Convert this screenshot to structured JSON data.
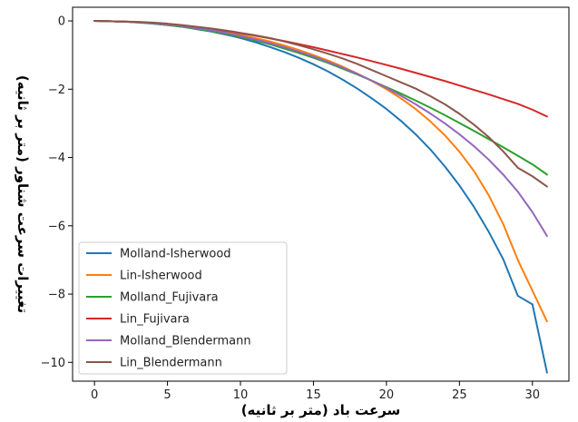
{
  "chart_data": {
    "type": "line",
    "xlabel": "سرعت باد (متر بر ثانیه)",
    "ylabel": "تغییرات سرعت شناور (متر بر ثانیه)",
    "xlim": [
      -1.5,
      32.5
    ],
    "ylim": [
      -10.55,
      0.4
    ],
    "x_ticks": [
      0,
      5,
      10,
      15,
      20,
      25,
      30
    ],
    "y_ticks": [
      0,
      -2,
      -4,
      -6,
      -8,
      -10
    ],
    "grid": false,
    "legend_position": "lower-left",
    "x": [
      0,
      1,
      2,
      3,
      4,
      5,
      6,
      7,
      8,
      9,
      10,
      11,
      12,
      13,
      14,
      15,
      16,
      17,
      18,
      19,
      20,
      21,
      22,
      23,
      24,
      25,
      26,
      27,
      28,
      29,
      30,
      31
    ],
    "series": [
      {
        "name": "Molland-Isherwood",
        "color": "#1f77b4",
        "values": [
          0,
          -0.01,
          -0.02,
          -0.05,
          -0.08,
          -0.12,
          -0.17,
          -0.24,
          -0.31,
          -0.4,
          -0.5,
          -0.62,
          -0.76,
          -0.91,
          -1.08,
          -1.27,
          -1.48,
          -1.72,
          -1.98,
          -2.27,
          -2.58,
          -2.93,
          -3.32,
          -3.76,
          -4.26,
          -4.82,
          -5.45,
          -6.17,
          -6.98,
          -8.05,
          -8.3,
          -10.3
        ]
      },
      {
        "name": "Lin-Isherwood",
        "color": "#ff7f0e",
        "values": [
          0,
          -0.01,
          -0.02,
          -0.04,
          -0.06,
          -0.1,
          -0.14,
          -0.19,
          -0.25,
          -0.32,
          -0.41,
          -0.5,
          -0.6,
          -0.72,
          -0.85,
          -1.0,
          -1.16,
          -1.34,
          -1.54,
          -1.76,
          -2.0,
          -2.27,
          -2.58,
          -2.94,
          -3.35,
          -3.83,
          -4.4,
          -5.1,
          -5.95,
          -7.0,
          -7.9,
          -8.8
        ]
      },
      {
        "name": "Molland_Fujivara",
        "color": "#2ca02c",
        "values": [
          0,
          -0.01,
          -0.02,
          -0.04,
          -0.08,
          -0.12,
          -0.17,
          -0.23,
          -0.3,
          -0.38,
          -0.47,
          -0.57,
          -0.68,
          -0.81,
          -0.94,
          -1.08,
          -1.23,
          -1.4,
          -1.57,
          -1.75,
          -1.94,
          -2.13,
          -2.33,
          -2.54,
          -2.76,
          -2.99,
          -3.22,
          -3.46,
          -3.7,
          -3.95,
          -4.2,
          -4.5
        ]
      },
      {
        "name": "Lin_Fujivara",
        "color": "#d62728",
        "values": [
          0,
          -0.01,
          -0.02,
          -0.04,
          -0.06,
          -0.09,
          -0.13,
          -0.18,
          -0.23,
          -0.29,
          -0.36,
          -0.43,
          -0.51,
          -0.59,
          -0.68,
          -0.77,
          -0.87,
          -0.97,
          -1.07,
          -1.18,
          -1.29,
          -1.4,
          -1.52,
          -1.64,
          -1.76,
          -1.89,
          -2.02,
          -2.15,
          -2.29,
          -2.43,
          -2.6,
          -2.8
        ]
      },
      {
        "name": "Molland_Blendermann",
        "color": "#9467bd",
        "values": [
          0,
          -0.01,
          -0.02,
          -0.04,
          -0.07,
          -0.11,
          -0.15,
          -0.21,
          -0.27,
          -0.35,
          -0.44,
          -0.54,
          -0.65,
          -0.77,
          -0.9,
          -1.04,
          -1.2,
          -1.37,
          -1.55,
          -1.75,
          -1.96,
          -2.19,
          -2.44,
          -2.71,
          -3.0,
          -3.32,
          -3.67,
          -4.06,
          -4.5,
          -5.0,
          -5.6,
          -6.3
        ]
      },
      {
        "name": "Lin_Blendermann",
        "color": "#8c564b",
        "values": [
          0,
          -0.01,
          -0.02,
          -0.03,
          -0.05,
          -0.08,
          -0.12,
          -0.17,
          -0.22,
          -0.28,
          -0.35,
          -0.42,
          -0.5,
          -0.6,
          -0.71,
          -0.83,
          -0.96,
          -1.1,
          -1.26,
          -1.44,
          -1.62,
          -1.8,
          -1.98,
          -2.2,
          -2.44,
          -2.72,
          -3.04,
          -3.4,
          -3.82,
          -4.3,
          -4.55,
          -4.85
        ]
      }
    ]
  }
}
